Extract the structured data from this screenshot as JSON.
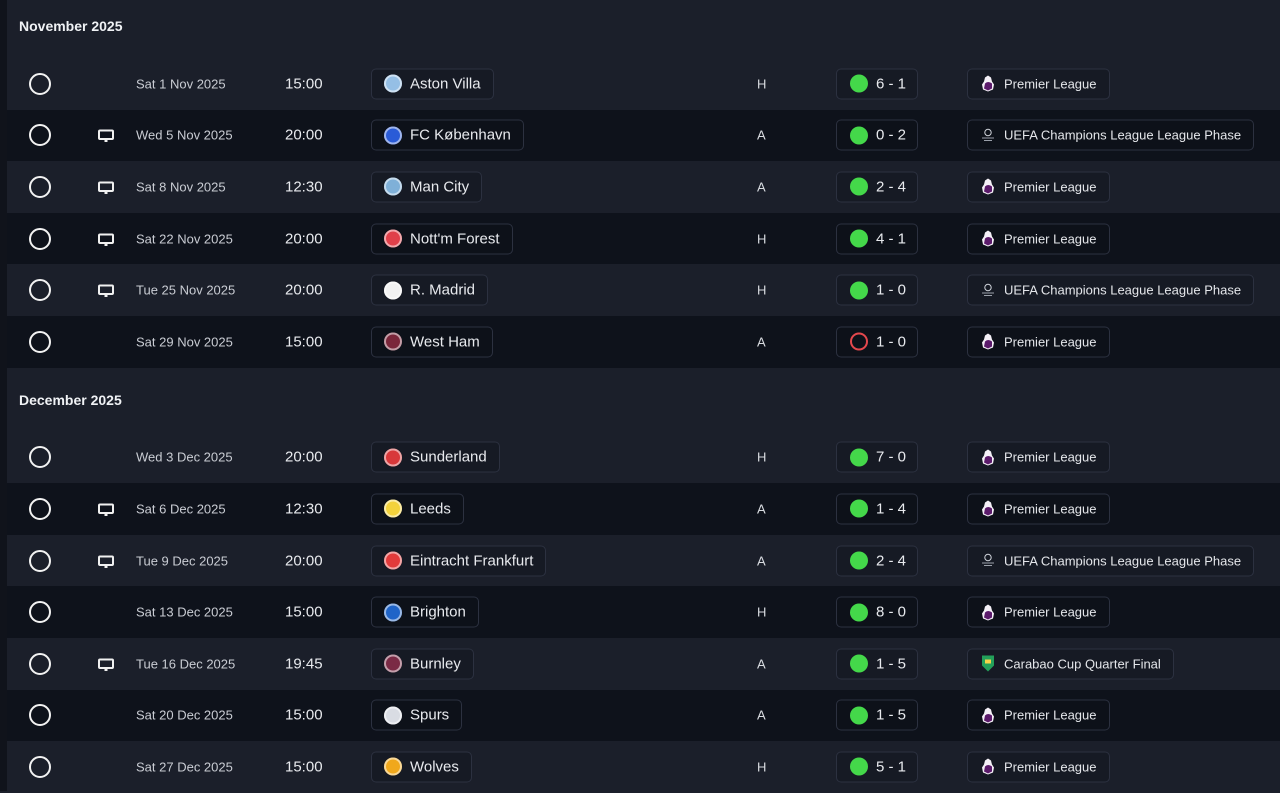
{
  "colors": {
    "win": "#44d84a",
    "loss": "#e5484d",
    "row_alt": "#0e121b",
    "background": "#1b1f2a"
  },
  "sections": [
    {
      "title": "November 2025",
      "matches": [
        {
          "tv": false,
          "date": "Sat 1 Nov 2025",
          "time": "15:00",
          "team": "Aston Villa",
          "crest": "#95bfe5",
          "venue": "H",
          "result": "win",
          "score": "6 - 1",
          "competition": "Premier League",
          "comp_icon": "premier-league-icon"
        },
        {
          "tv": true,
          "date": "Wed 5 Nov 2025",
          "time": "20:00",
          "team": "FC København",
          "crest": "#2a5bd7",
          "venue": "A",
          "result": "win",
          "score": "0 - 2",
          "competition": "UEFA Champions League League Phase",
          "comp_icon": "champions-league-icon"
        },
        {
          "tv": true,
          "date": "Sat 8 Nov 2025",
          "time": "12:30",
          "team": "Man City",
          "crest": "#7fb0d8",
          "venue": "A",
          "result": "win",
          "score": "2 - 4",
          "competition": "Premier League",
          "comp_icon": "premier-league-icon"
        },
        {
          "tv": true,
          "date": "Sat 22 Nov 2025",
          "time": "20:00",
          "team": "Nott'm Forest",
          "crest": "#e0404a",
          "venue": "H",
          "result": "win",
          "score": "4 - 1",
          "competition": "Premier League",
          "comp_icon": "premier-league-icon"
        },
        {
          "tv": true,
          "date": "Tue 25 Nov 2025",
          "time": "20:00",
          "team": "R. Madrid",
          "crest": "#f2f2f2",
          "venue": "H",
          "result": "win",
          "score": "1 - 0",
          "competition": "UEFA Champions League League Phase",
          "comp_icon": "champions-league-icon"
        },
        {
          "tv": false,
          "date": "Sat 29 Nov 2025",
          "time": "15:00",
          "team": "West Ham",
          "crest": "#7a263a",
          "venue": "A",
          "result": "loss",
          "score": "1 - 0",
          "competition": "Premier League",
          "comp_icon": "premier-league-icon"
        }
      ]
    },
    {
      "title": "December 2025",
      "matches": [
        {
          "tv": false,
          "date": "Wed 3 Dec 2025",
          "time": "20:00",
          "team": "Sunderland",
          "crest": "#d8383a",
          "venue": "H",
          "result": "win",
          "score": "7 - 0",
          "competition": "Premier League",
          "comp_icon": "premier-league-icon"
        },
        {
          "tv": true,
          "date": "Sat 6 Dec 2025",
          "time": "12:30",
          "team": "Leeds",
          "crest": "#f3d23b",
          "venue": "A",
          "result": "win",
          "score": "1 - 4",
          "competition": "Premier League",
          "comp_icon": "premier-league-icon"
        },
        {
          "tv": true,
          "date": "Tue 9 Dec 2025",
          "time": "20:00",
          "team": "Eintracht Frankfurt",
          "crest": "#e23a3a",
          "venue": "A",
          "result": "win",
          "score": "2 - 4",
          "competition": "UEFA Champions League League Phase",
          "comp_icon": "champions-league-icon"
        },
        {
          "tv": false,
          "date": "Sat 13 Dec 2025",
          "time": "15:00",
          "team": "Brighton",
          "crest": "#1f64c8",
          "venue": "H",
          "result": "win",
          "score": "8 - 0",
          "competition": "Premier League",
          "comp_icon": "premier-league-icon"
        },
        {
          "tv": true,
          "date": "Tue 16 Dec 2025",
          "time": "19:45",
          "team": "Burnley",
          "crest": "#7a2a45",
          "venue": "A",
          "result": "win",
          "score": "1 - 5",
          "competition": "Carabao Cup Quarter Final",
          "comp_icon": "carabao-cup-icon"
        },
        {
          "tv": false,
          "date": "Sat 20 Dec 2025",
          "time": "15:00",
          "team": "Spurs",
          "crest": "#d9dce3",
          "venue": "A",
          "result": "win",
          "score": "1 - 5",
          "competition": "Premier League",
          "comp_icon": "premier-league-icon"
        },
        {
          "tv": false,
          "date": "Sat 27 Dec 2025",
          "time": "15:00",
          "team": "Wolves",
          "crest": "#f0a81c",
          "venue": "H",
          "result": "win",
          "score": "5 - 1",
          "competition": "Premier League",
          "comp_icon": "premier-league-icon"
        }
      ]
    }
  ]
}
